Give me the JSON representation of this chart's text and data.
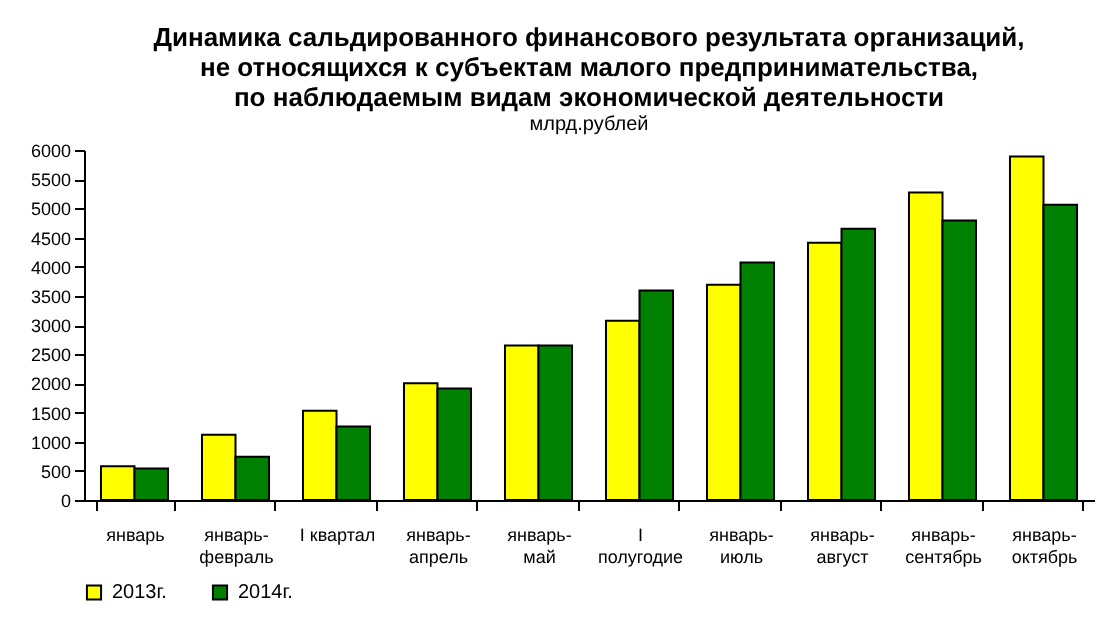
{
  "chart_data": {
    "type": "bar",
    "title": [
      "Динамика сальдированного финансового результата организаций,",
      "не относящихся к субъектам малого предпринимательства,",
      "по наблюдаемым видам экономической деятельности"
    ],
    "subtitle": "млрд.рублей",
    "categories": [
      "январь",
      "январь-февраль",
      "I квартал",
      "январь-апрель",
      "январь-май",
      "I полугодие",
      "январь-июль",
      "январь-август",
      "январь-сентябрь",
      "январь-октябрь"
    ],
    "series": [
      {
        "name": "2013г.",
        "color": "#ffff00",
        "values": [
          580,
          1120,
          1530,
          2000,
          2650,
          3075,
          3690,
          4410,
          5270,
          5890
        ]
      },
      {
        "name": "2014г.",
        "color": "#008000",
        "values": [
          540,
          740,
          1260,
          1910,
          2650,
          3590,
          4070,
          4650,
          4790,
          5060
        ]
      }
    ],
    "ylim": [
      0,
      6000
    ],
    "yticks": [
      0,
      500,
      1000,
      1500,
      2000,
      2500,
      3000,
      3500,
      4000,
      4500,
      5000,
      5500,
      6000
    ],
    "grid": false,
    "legend": "bottom"
  }
}
